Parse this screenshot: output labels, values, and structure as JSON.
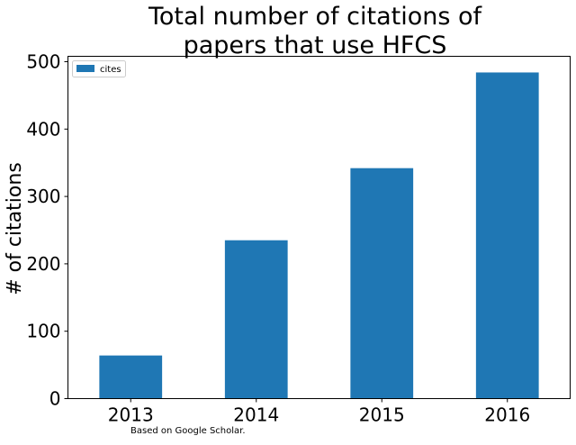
{
  "chart_data": {
    "type": "bar",
    "title": "Total number of citations of\npapers that use HFCS",
    "xlabel": "",
    "ylabel": "# of citations",
    "categories": [
      "2013",
      "2014",
      "2015",
      "2016"
    ],
    "series": [
      {
        "name": "cites",
        "values": [
          64,
          235,
          342,
          484
        ],
        "color": "#1f77b4"
      }
    ],
    "ylim": [
      0,
      508
    ],
    "yticks": [
      0,
      100,
      200,
      300,
      400,
      500
    ],
    "grid": false,
    "legend": "top-left"
  },
  "footnote": "Based on Google Scholar."
}
